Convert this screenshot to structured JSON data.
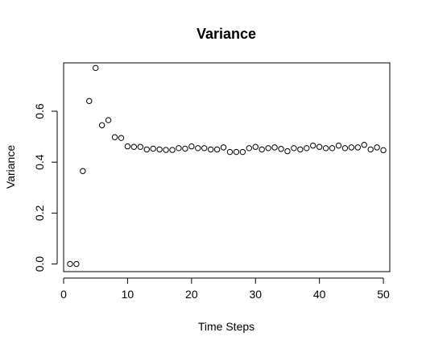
{
  "chart_data": {
    "type": "scatter",
    "title": "Variance",
    "xlabel": "Time Steps",
    "ylabel": "Variance",
    "xlim": [
      0,
      51
    ],
    "ylim": [
      -0.03,
      0.79
    ],
    "xticks": [
      0,
      10,
      20,
      30,
      40,
      50
    ],
    "yticks": [
      0.0,
      0.2,
      0.4,
      0.6
    ],
    "ytick_labels": [
      "0.0",
      "0.2",
      "0.4",
      "0.6"
    ],
    "grid": false,
    "point_style": "open-circle",
    "x": [
      1,
      2,
      3,
      4,
      5,
      6,
      7,
      8,
      9,
      10,
      11,
      12,
      13,
      14,
      15,
      16,
      17,
      18,
      19,
      20,
      21,
      22,
      23,
      24,
      25,
      26,
      27,
      28,
      29,
      30,
      31,
      32,
      33,
      34,
      35,
      36,
      37,
      38,
      39,
      40,
      41,
      42,
      43,
      44,
      45,
      46,
      47,
      48,
      49,
      50
    ],
    "y": [
      0.0,
      0.0,
      0.365,
      0.64,
      0.77,
      0.545,
      0.565,
      0.498,
      0.495,
      0.462,
      0.46,
      0.46,
      0.45,
      0.453,
      0.45,
      0.448,
      0.448,
      0.455,
      0.453,
      0.462,
      0.455,
      0.455,
      0.45,
      0.45,
      0.458,
      0.44,
      0.44,
      0.44,
      0.455,
      0.46,
      0.45,
      0.455,
      0.458,
      0.452,
      0.443,
      0.455,
      0.45,
      0.455,
      0.465,
      0.46,
      0.455,
      0.455,
      0.465,
      0.455,
      0.458,
      0.458,
      0.468,
      0.45,
      0.458,
      0.447
    ]
  }
}
